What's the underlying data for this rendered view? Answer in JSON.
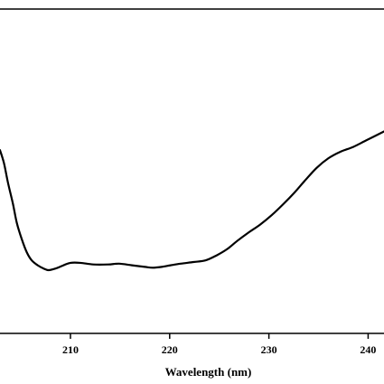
{
  "chart_data": {
    "type": "line",
    "title": "",
    "xlabel": "Wavelength (nm)",
    "ylabel": "",
    "xlim": [
      202.9,
      241.6
    ],
    "ylim": [
      -1,
      1
    ],
    "xticks": [
      {
        "value": 210,
        "label": "210"
      },
      {
        "value": 220,
        "label": "220"
      },
      {
        "value": 230,
        "label": "230"
      },
      {
        "value": 240,
        "label": "240"
      }
    ],
    "grid": false,
    "legend": "none",
    "line_color": "#000000",
    "series": [
      {
        "x": [
          202.9,
          203.3,
          203.7,
          204.2,
          204.6,
          205.1,
          205.6,
          206.1,
          206.7,
          207.3,
          207.8,
          208.5,
          209.3,
          210.0,
          211.0,
          212.3,
          213.8,
          214.9,
          216.2,
          217.5,
          218.3,
          219.2,
          220.1,
          221.1,
          222.4,
          223.6,
          224.7,
          225.8,
          226.8,
          227.9,
          229.1,
          230.3,
          231.5,
          232.6,
          233.6,
          234.8,
          236.0,
          237.2,
          238.5,
          239.8,
          241.6
        ],
        "y": [
          0.13,
          0.05,
          -0.07,
          -0.2,
          -0.32,
          -0.42,
          -0.5,
          -0.55,
          -0.58,
          -0.6,
          -0.61,
          -0.6,
          -0.58,
          -0.565,
          -0.565,
          -0.575,
          -0.575,
          -0.57,
          -0.58,
          -0.59,
          -0.595,
          -0.59,
          -0.58,
          -0.57,
          -0.56,
          -0.55,
          -0.52,
          -0.48,
          -0.43,
          -0.38,
          -0.33,
          -0.27,
          -0.2,
          -0.13,
          -0.06,
          0.02,
          0.08,
          0.12,
          0.15,
          0.19,
          0.245
        ]
      }
    ]
  }
}
